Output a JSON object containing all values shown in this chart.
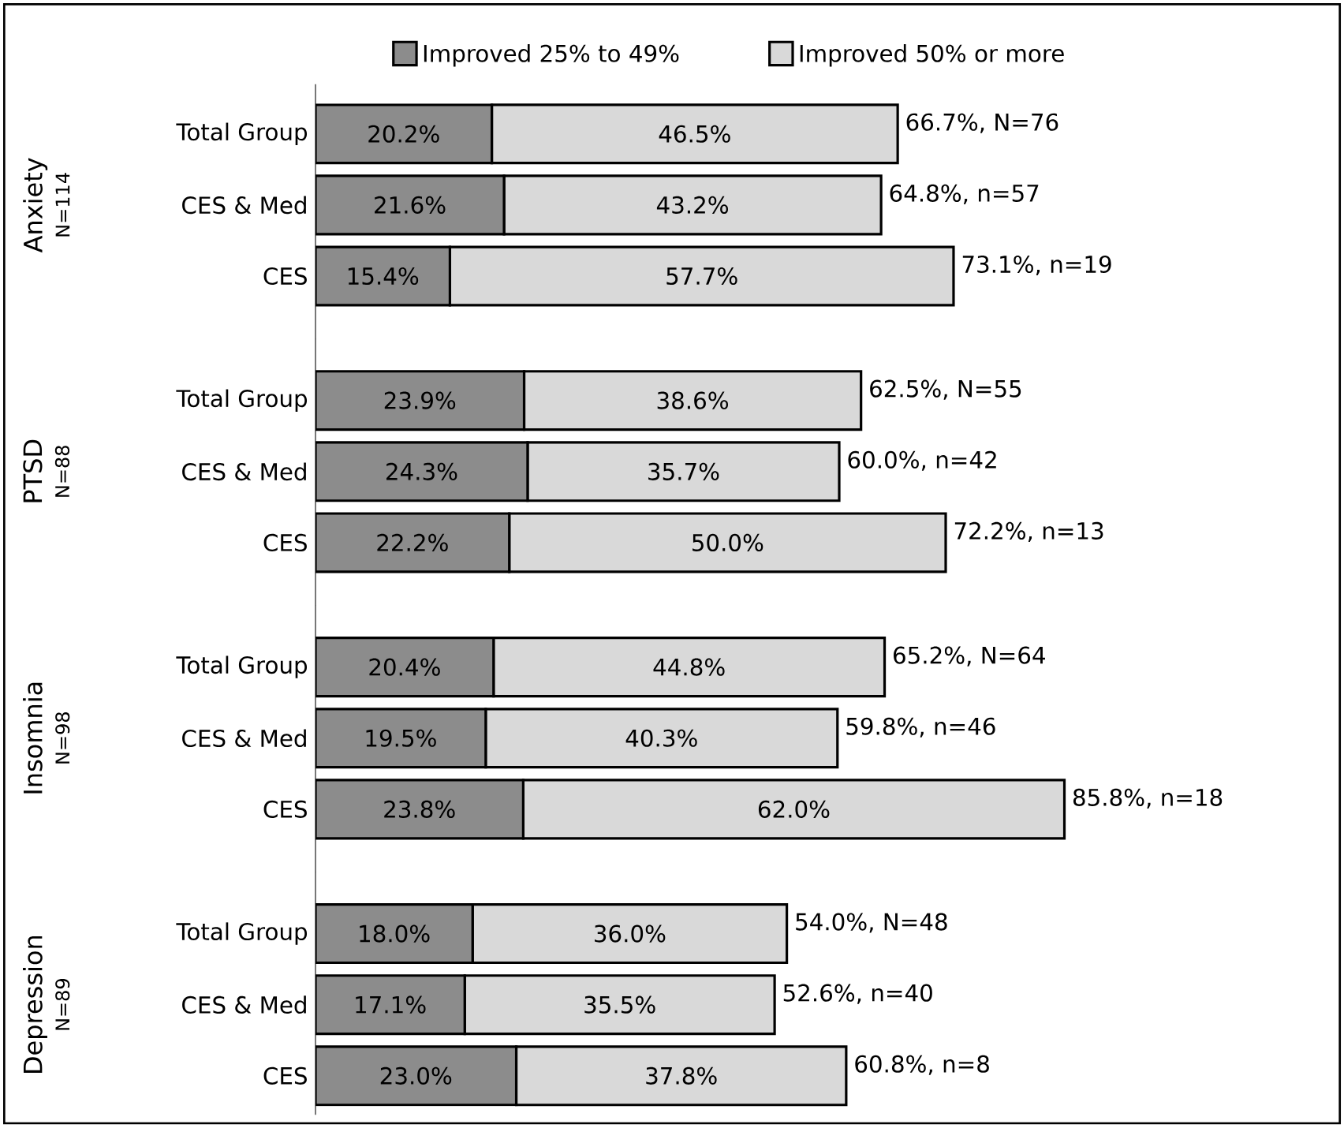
{
  "chart_data": {
    "type": "bar",
    "orientation": "horizontal",
    "stacked": true,
    "legend": "top",
    "categories": [
      "Total Group",
      "CES & Med",
      "CES",
      "Total Group",
      "CES & Med",
      "CES",
      "Total Group",
      "CES & Med",
      "CES",
      "Total Group",
      "CES & Med",
      "CES"
    ],
    "series": [
      {
        "name": "Improved 25% to 49%",
        "color": "#8c8c8c",
        "values": [
          20.2,
          21.6,
          15.4,
          23.9,
          24.3,
          22.2,
          20.4,
          19.5,
          23.8,
          18.0,
          17.1,
          23.0
        ],
        "value_labels": [
          "20.2%",
          "21.6%",
          "15.4%",
          "23.9%",
          "24.3%",
          "22.2%",
          "20.4%",
          "19.5%",
          "23.8%",
          "18.0%",
          "17.1%",
          "23.0%"
        ]
      },
      {
        "name": "Improved 50% or more",
        "color": "#d9d9d9",
        "values": [
          46.5,
          43.2,
          57.7,
          38.6,
          35.7,
          50.0,
          44.8,
          40.3,
          62.0,
          36.0,
          35.5,
          37.8
        ],
        "value_labels": [
          "46.5%",
          "43.2%",
          "57.7%",
          "38.6%",
          "35.7%",
          "50.0%",
          "44.8%",
          "40.3%",
          "62.0%",
          "36.0%",
          "35.5%",
          "37.8%"
        ]
      }
    ],
    "totals": [
      "66.7%, N=76",
      "64.8%, n=57",
      "73.1%, n=19",
      "62.5%, N=55",
      "60.0%, n=42",
      "72.2%, n=13",
      "65.2%, N=64",
      "59.8%, n=46",
      "85.8%, n=18",
      "54.0%, N=48",
      "52.6%, n=40",
      "60.8%, n=8"
    ],
    "annotations": [
      "Anxiety",
      "N=114",
      "PTSD",
      "N=88",
      "Insomnia",
      "N=98",
      "Depression",
      "N=89"
    ]
  }
}
